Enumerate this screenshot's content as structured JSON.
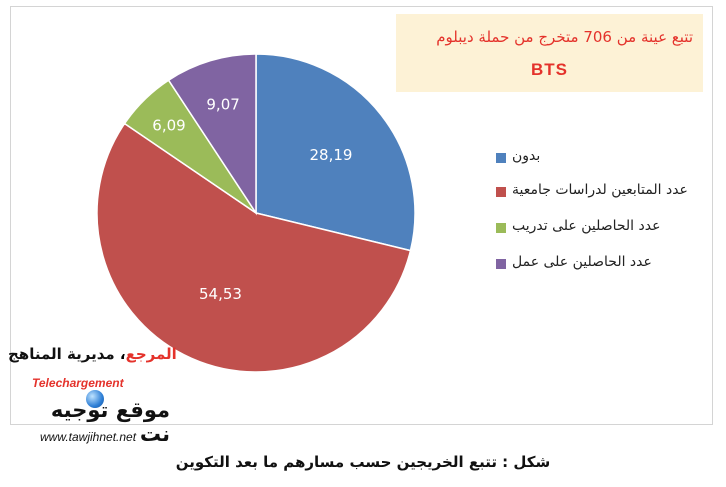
{
  "chart_data": {
    "type": "pie",
    "title": "تتبع عينة من 706 متخرج من حملة ديبلوم",
    "subtitle": "BTS",
    "categories": [
      "بدون",
      "عدد المتابعين لدراسات جامعية",
      "عدد الحاصلين على تدريب",
      "عدد الحاصلين على عمل"
    ],
    "values": [
      28.19,
      54.53,
      6.09,
      9.07
    ],
    "data_labels": [
      "28,19",
      "54,53",
      "6,09",
      "9,07"
    ],
    "colors": [
      "#4f81bd",
      "#c0504d",
      "#9bbb59",
      "#8064a2"
    ],
    "legend_position": "right",
    "start_angle": "12 o'clock",
    "direction": "clockwise"
  },
  "source": {
    "key": "المرجع",
    "value": "مديرية المناهج"
  },
  "watermark": {
    "label": "Telechargement",
    "site_name": "موقع توجيه نت",
    "url": "www.tawjihnet.net",
    "icon": "globe-icon"
  },
  "caption": "شكل : تتبع الخريجين حسب مسارهم ما بعد التكوين"
}
